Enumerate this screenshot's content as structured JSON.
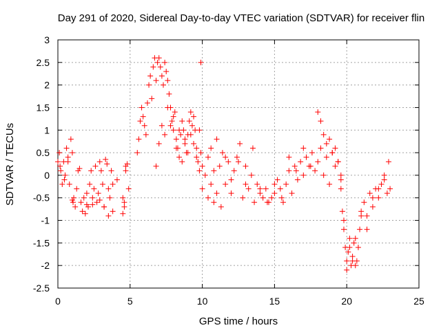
{
  "chart_data": {
    "type": "scatter",
    "title": "Day 291 of 2020, Sidereal Day-to-day VTEC variation (SDTVAR) for receiver flin",
    "xlabel": "GPS time / hours",
    "ylabel": "SDTVAR / TECUs",
    "xlim": [
      0,
      25
    ],
    "ylim": [
      -2.5,
      3
    ],
    "xticks": [
      0,
      5,
      10,
      15,
      20,
      25
    ],
    "xtick_labels": [
      "0",
      "5",
      "10",
      "15",
      "20",
      "25"
    ],
    "yticks": [
      -2.5,
      -2,
      -1.5,
      -1,
      -0.5,
      0,
      0.5,
      1,
      1.5,
      2,
      2.5,
      3
    ],
    "ytick_labels": [
      "-2.5",
      "-2",
      "-1.5",
      "-1",
      "-0.5",
      "0",
      "0.5",
      "1",
      "1.5",
      "2",
      "2.5",
      "3"
    ],
    "grid": true,
    "marker": "plus",
    "marker_color": "#ff0000",
    "series": [
      {
        "name": "SDTVAR",
        "x": [
          0.0,
          0.1,
          0.2,
          0.3,
          0.4,
          0.5,
          0.6,
          0.7,
          0.8,
          0.9,
          1.0,
          0.15,
          0.45,
          0.7,
          1.0,
          1.05,
          1.1,
          1.2,
          1.3,
          1.4,
          1.5,
          1.6,
          1.7,
          1.8,
          2.0,
          2.1,
          2.2,
          2.3,
          2.4,
          2.5,
          2.6,
          2.7,
          2.8,
          2.9,
          3.0,
          3.1,
          3.2,
          3.3,
          3.4,
          3.5,
          3.6,
          3.7,
          3.8,
          4.5,
          4.6,
          4.7,
          4.8,
          4.9,
          4.5,
          4.6,
          4.7,
          5.5,
          5.6,
          5.7,
          5.8,
          5.9,
          6.0,
          6.1,
          6.2,
          6.3,
          6.4,
          6.5,
          6.6,
          6.7,
          6.8,
          6.9,
          7.0,
          7.1,
          7.2,
          7.3,
          7.4,
          7.5,
          7.6,
          7.7,
          7.8,
          7.9,
          8.0,
          8.1,
          8.2,
          8.3,
          8.4,
          8.5,
          8.6,
          8.7,
          8.8,
          8.9,
          9.0,
          9.1,
          9.2,
          9.3,
          9.4,
          9.5,
          9.6,
          9.7,
          9.8,
          9.9,
          10.0,
          6.8,
          7.0,
          7.2,
          7.4,
          7.6,
          7.8,
          8.0,
          8.2,
          8.4,
          8.6,
          8.8,
          9.0,
          9.2,
          9.4,
          9.6,
          9.8,
          10.0,
          10.2,
          10.4,
          10.6,
          10.8,
          11.0,
          11.2,
          11.4,
          11.6,
          11.8,
          12.0,
          12.2,
          12.4,
          12.6,
          12.8,
          13.0,
          13.2,
          13.4,
          13.6,
          13.8,
          14.0,
          14.2,
          14.4,
          14.6,
          14.8,
          15.0,
          15.2,
          10.4,
          10.6,
          10.8,
          11.0,
          11.3,
          11.6,
          12.0,
          12.5,
          13.0,
          13.5,
          14.0,
          14.5,
          15.0,
          15.5,
          15.4,
          15.6,
          15.8,
          16.0,
          16.2,
          16.4,
          16.6,
          16.8,
          17.0,
          17.2,
          17.4,
          17.6,
          17.8,
          18.0,
          18.2,
          18.4,
          18.6,
          18.8,
          19.0,
          19.2,
          19.4,
          19.6,
          16.0,
          16.5,
          17.0,
          17.5,
          18.0,
          18.2,
          18.4,
          18.6,
          18.8,
          19.0,
          19.2,
          19.4,
          19.6,
          19.6,
          19.7,
          19.8,
          19.9,
          20.0,
          20.1,
          20.2,
          20.3,
          20.4,
          20.5,
          20.6,
          20.7,
          20.8,
          20.9,
          21.0,
          21.2,
          21.4,
          21.6,
          21.8,
          22.0,
          22.2,
          22.4,
          22.6,
          22.8,
          23.0,
          19.8,
          20.0,
          20.2,
          20.4,
          20.6,
          21.0,
          21.4,
          21.8,
          22.2,
          22.6,
          22.9,
          9.9,
          2.9,
          3.2,
          3.5,
          3.8,
          4.1,
          2.0,
          2.4,
          1.9
        ],
        "y": [
          0.3,
          0.5,
          0.1,
          -0.2,
          0.3,
          0.0,
          0.6,
          0.4,
          -0.2,
          0.8,
          0.5,
          0.2,
          -0.1,
          0.3,
          -0.55,
          -0.6,
          -0.5,
          -0.7,
          -0.3,
          0.1,
          0.15,
          -0.6,
          -0.8,
          -0.5,
          -0.4,
          -0.7,
          -0.2,
          0.1,
          -0.5,
          -0.3,
          0.2,
          -0.6,
          -0.4,
          0.3,
          0.1,
          -0.2,
          -0.7,
          0.35,
          0.25,
          -0.9,
          -0.5,
          0.1,
          -0.8,
          -0.5,
          -0.7,
          0.1,
          0.25,
          -0.3,
          -0.85,
          -0.6,
          0.2,
          0.5,
          0.8,
          1.2,
          1.5,
          1.3,
          1.1,
          0.9,
          1.6,
          2.0,
          2.2,
          1.7,
          2.4,
          2.6,
          2.1,
          2.5,
          2.6,
          2.4,
          2.2,
          2.0,
          2.5,
          2.3,
          2.1,
          1.8,
          1.5,
          1.2,
          1.0,
          1.4,
          0.8,
          0.6,
          0.4,
          0.9,
          1.2,
          1.0,
          0.7,
          0.5,
          0.9,
          1.2,
          1.4,
          1.1,
          1.3,
          1.0,
          0.6,
          0.3,
          0.1,
          0.5,
          0.2,
          0.2,
          0.7,
          1.1,
          0.9,
          1.5,
          1.1,
          1.3,
          0.6,
          1.0,
          0.3,
          0.8,
          0.5,
          0.9,
          0.7,
          0.4,
          1.0,
          -0.3,
          0.0,
          0.4,
          0.6,
          -0.6,
          0.8,
          0.2,
          0.5,
          -0.2,
          0.3,
          -0.4,
          0.1,
          0.4,
          0.7,
          -0.5,
          0.2,
          -0.3,
          0.0,
          -0.6,
          -0.2,
          -0.4,
          -0.5,
          -0.3,
          -0.6,
          -0.5,
          -0.2,
          -0.1,
          -0.5,
          -0.2,
          0.1,
          -0.4,
          -0.7,
          0.4,
          -0.1,
          0.3,
          -0.2,
          0.6,
          -0.3,
          -0.6,
          -0.4,
          -0.5,
          -0.3,
          -0.6,
          -0.2,
          0.1,
          -0.4,
          0.2,
          -0.1,
          0.3,
          0.0,
          0.4,
          0.2,
          0.5,
          0.1,
          0.3,
          0.6,
          0.0,
          0.4,
          -0.2,
          0.5,
          0.2,
          0.3,
          0.0,
          0.4,
          0.1,
          0.6,
          0.2,
          1.4,
          1.2,
          0.9,
          0.7,
          0.8,
          0.5,
          0.6,
          0.3,
          -0.1,
          -0.3,
          -0.8,
          -1.2,
          -1.6,
          -1.9,
          -1.7,
          -1.4,
          -2.0,
          -1.8,
          -1.5,
          -2.0,
          -1.9,
          -1.6,
          -1.2,
          -0.8,
          -0.6,
          -0.9,
          -0.4,
          -0.7,
          -0.3,
          -0.5,
          -0.2,
          0.0,
          -0.4,
          -0.3,
          -1.0,
          -2.1,
          -1.6,
          -1.9,
          -1.4,
          -0.9,
          -1.2,
          -0.5,
          -0.3,
          -0.1,
          0.3,
          2.5,
          -0.55,
          -0.7,
          -0.3,
          -0.2,
          -0.1,
          -0.65,
          -0.65,
          -0.85
        ]
      }
    ]
  }
}
